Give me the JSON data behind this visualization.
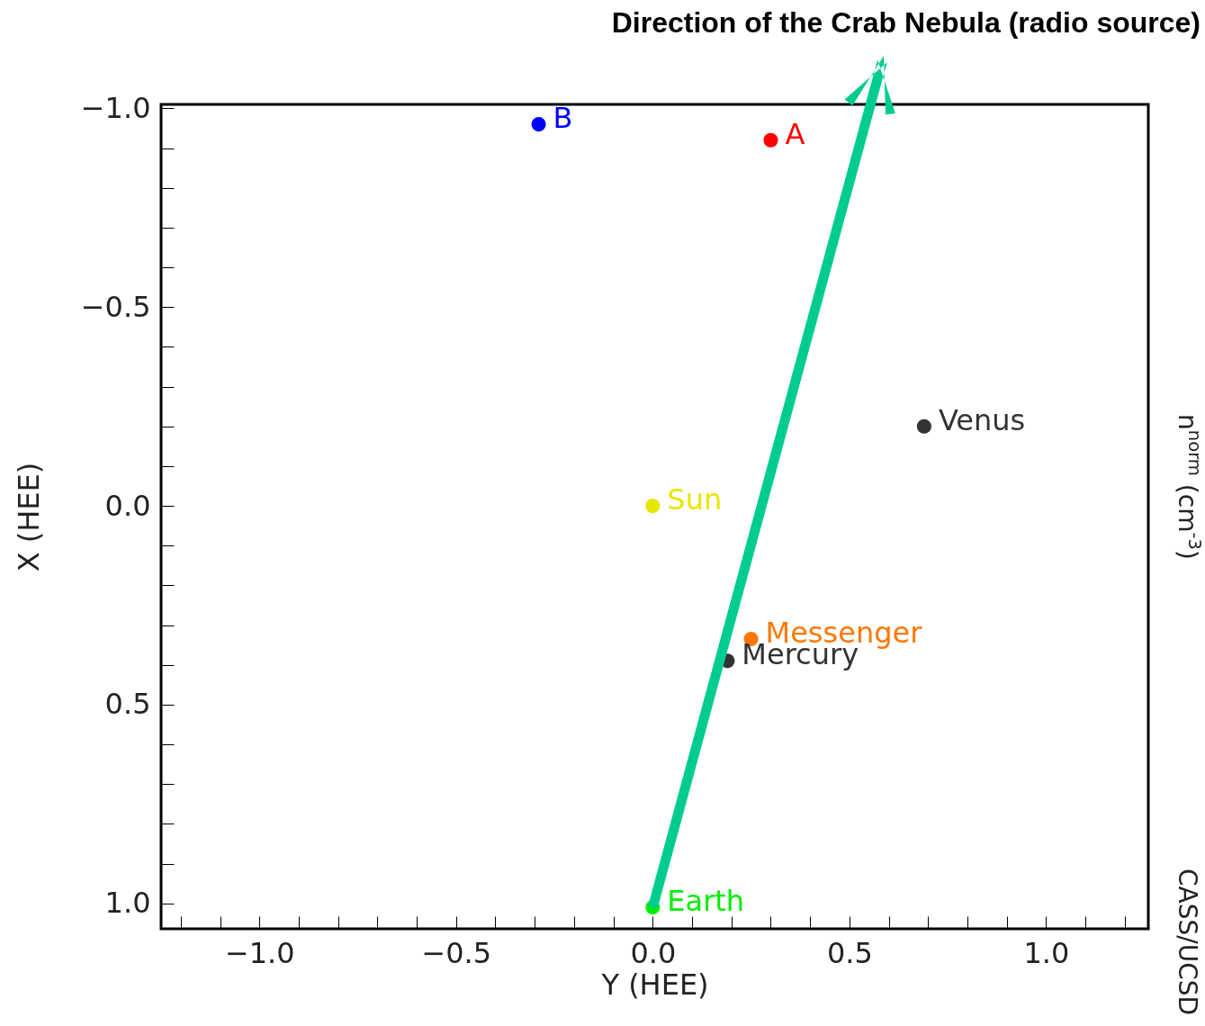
{
  "chart_data": {
    "type": "scatter",
    "xlabel": "Y (HEE)",
    "ylabel": "X (HEE)",
    "xlim": [
      -1.25,
      1.26
    ],
    "ylim": [
      1.064,
      -1.01
    ],
    "xticks": [
      {
        "value": -1.2,
        "label": null
      },
      {
        "value": -1.1,
        "label": null
      },
      {
        "value": -1.0,
        "label": "−1.0"
      },
      {
        "value": -0.9,
        "label": null
      },
      {
        "value": -0.8,
        "label": null
      },
      {
        "value": -0.7,
        "label": null
      },
      {
        "value": -0.6,
        "label": null
      },
      {
        "value": -0.5,
        "label": "−0.5"
      },
      {
        "value": -0.4,
        "label": null
      },
      {
        "value": -0.3,
        "label": null
      },
      {
        "value": -0.2,
        "label": null
      },
      {
        "value": -0.1,
        "label": null
      },
      {
        "value": 0,
        "label": "0.0"
      },
      {
        "value": 0.1,
        "label": null
      },
      {
        "value": 0.2,
        "label": null
      },
      {
        "value": 0.3,
        "label": null
      },
      {
        "value": 0.4,
        "label": null
      },
      {
        "value": 0.5,
        "label": "0.5"
      },
      {
        "value": 0.6,
        "label": null
      },
      {
        "value": 0.7,
        "label": null
      },
      {
        "value": 0.8,
        "label": null
      },
      {
        "value": 0.9,
        "label": null
      },
      {
        "value": 1.0,
        "label": "1.0"
      },
      {
        "value": 1.1,
        "label": null
      },
      {
        "value": 1.2,
        "label": null
      }
    ],
    "yticks": [
      {
        "value": -1.0,
        "label": "−1.0"
      },
      {
        "value": -0.9,
        "label": null
      },
      {
        "value": -0.8,
        "label": null
      },
      {
        "value": -0.7,
        "label": null
      },
      {
        "value": -0.6,
        "label": null
      },
      {
        "value": -0.5,
        "label": "−0.5"
      },
      {
        "value": -0.4,
        "label": null
      },
      {
        "value": -0.3,
        "label": null
      },
      {
        "value": -0.2,
        "label": null
      },
      {
        "value": -0.1,
        "label": null
      },
      {
        "value": 0,
        "label": "0.0"
      },
      {
        "value": 0.1,
        "label": null
      },
      {
        "value": 0.2,
        "label": null
      },
      {
        "value": 0.3,
        "label": null
      },
      {
        "value": 0.4,
        "label": null
      },
      {
        "value": 0.5,
        "label": "0.5"
      },
      {
        "value": 0.6,
        "label": null
      },
      {
        "value": 0.7,
        "label": null
      },
      {
        "value": 0.8,
        "label": null
      },
      {
        "value": 0.9,
        "label": null
      },
      {
        "value": 1.0,
        "label": "1.0"
      }
    ],
    "marker": "circle",
    "series": [
      {
        "name": "B",
        "color": "#0000ff",
        "x": [
          -0.29
        ],
        "values": [
          -0.96
        ]
      },
      {
        "name": "A",
        "color": "#ff0000",
        "x": [
          0.3
        ],
        "values": [
          -0.92
        ]
      },
      {
        "name": "Venus",
        "color": "#333333",
        "x": [
          0.69
        ],
        "values": [
          -0.2
        ]
      },
      {
        "name": "Sun",
        "color": "#e6e600",
        "x": [
          0
        ],
        "values": [
          0
        ]
      },
      {
        "name": "Messenger",
        "color": "#ff7700",
        "x": [
          0.25
        ],
        "values": [
          0.335
        ]
      },
      {
        "name": "Mercury",
        "color": "#333333",
        "x": [
          0.19
        ],
        "values": [
          0.39
        ]
      },
      {
        "name": "Earth",
        "color": "#00ee00",
        "x": [
          0
        ],
        "values": [
          1.01
        ]
      }
    ],
    "annotations": [
      "Direction of the Crab Nebula (radio source)",
      "n$^{norm}$ (cm$^{-3}$)",
      "CASS/UCSD"
    ]
  }
}
